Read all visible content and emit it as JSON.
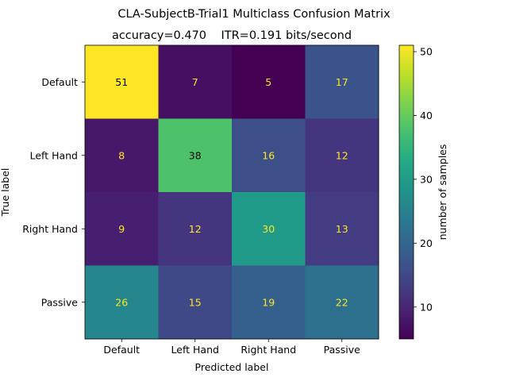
{
  "chart_data": {
    "type": "heatmap",
    "title": "CLA-SubjectB-Trial1 Multiclass Confusion Matrix",
    "subtitle": "accuracy=0.470    ITR=0.191 bits/second",
    "xlabel": "Predicted label",
    "ylabel": "True label",
    "x_categories": [
      "Default",
      "Left Hand",
      "Right Hand",
      "Passive"
    ],
    "y_categories": [
      "Default",
      "Left Hand",
      "Right Hand",
      "Passive"
    ],
    "values": [
      [
        51,
        7,
        5,
        17
      ],
      [
        8,
        38,
        16,
        12
      ],
      [
        9,
        12,
        30,
        13
      ],
      [
        26,
        15,
        19,
        22
      ]
    ],
    "colorbar": {
      "label": "number of samples",
      "ticks": [
        10,
        20,
        30,
        40,
        50
      ],
      "range": [
        5,
        51
      ],
      "colormap": "viridis"
    }
  }
}
